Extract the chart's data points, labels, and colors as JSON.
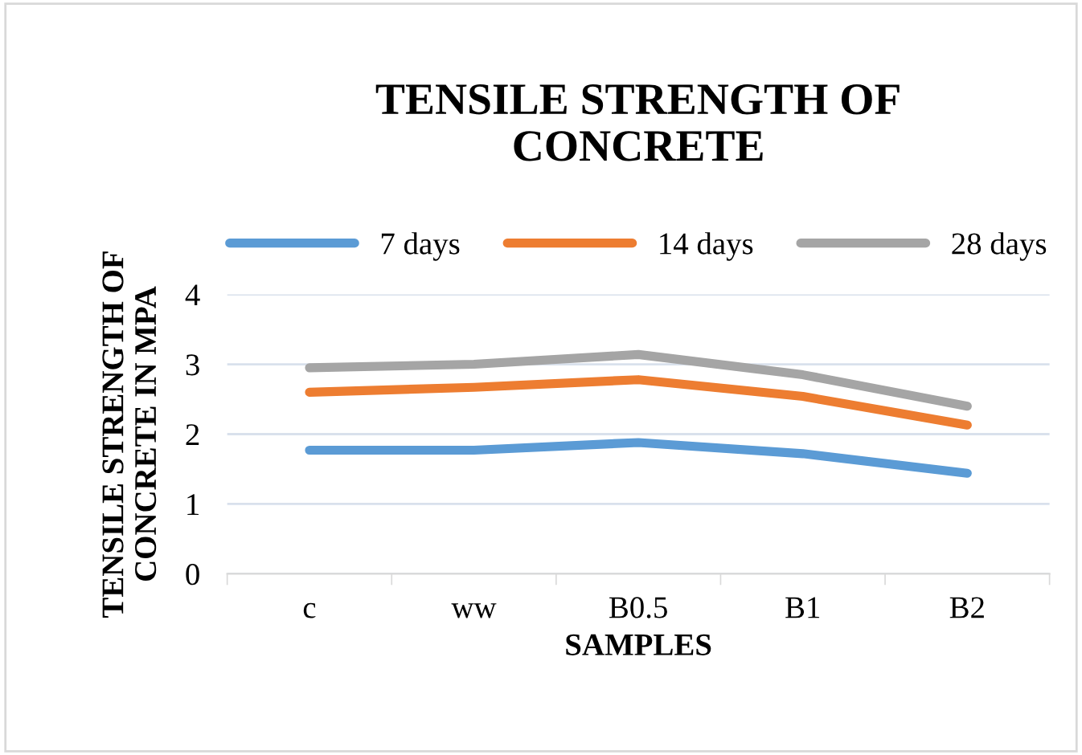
{
  "chart_data": {
    "type": "line",
    "title": "TENSILE STRENGTH OF\nCONCRETE",
    "xlabel": "SAMPLES",
    "ylabel": "TENSILE STRENGTH OF\nCONCRETE IN MPA",
    "categories": [
      "c",
      "ww",
      "B0.5",
      "B1",
      "B2"
    ],
    "series": [
      {
        "name": "7 days",
        "color": "#5b9bd5",
        "values": [
          1.77,
          1.77,
          1.88,
          1.72,
          1.44
        ]
      },
      {
        "name": "14 days",
        "color": "#ed7d31",
        "values": [
          2.6,
          2.67,
          2.78,
          2.54,
          2.13
        ]
      },
      {
        "name": "28 days",
        "color": "#a5a5a5",
        "values": [
          2.95,
          3.0,
          3.14,
          2.85,
          2.4
        ]
      }
    ],
    "ylim": [
      0,
      4
    ],
    "yticks": [
      0,
      1,
      2,
      3,
      4
    ],
    "grid": "y",
    "legend": "top",
    "marker": "none",
    "line_style": "solid"
  }
}
